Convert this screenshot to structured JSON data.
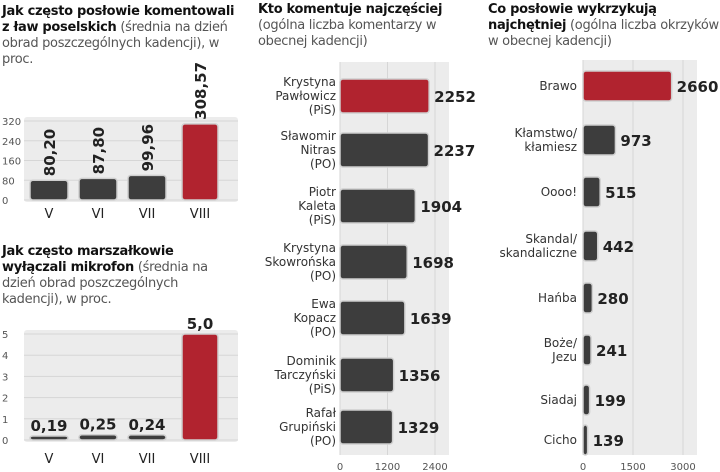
{
  "colors": {
    "dark": "#3d3d3d",
    "highlight": "#b1232f",
    "band": "#ececec"
  },
  "chart_data": [
    {
      "type": "bar",
      "title_bold": "Jak często posłowie komentowali z ław poselskich",
      "title_rest": "(średnia na dzień obrad poszczególnych kadencji), w proc.",
      "categories": [
        "V",
        "VI",
        "VII",
        "VIII"
      ],
      "values": [
        80.2,
        87.8,
        99.96,
        308.57
      ],
      "labels": [
        "80,20",
        "87,80",
        "99,96",
        "308,57"
      ],
      "yticks": [
        "0",
        "80",
        "160",
        "240",
        "320"
      ],
      "ylim": [
        0,
        320
      ],
      "highlight": [
        3
      ]
    },
    {
      "type": "bar",
      "title_bold": "Jak często marszałkowie wyłączali mikrofon",
      "title_rest": "(średnia na dzień obrad poszczególnych kadencji), w proc.",
      "categories": [
        "V",
        "VI",
        "VII",
        "VIII"
      ],
      "values": [
        0.19,
        0.25,
        0.24,
        5.0
      ],
      "labels": [
        "0,19",
        "0,25",
        "0,24",
        "5,0"
      ],
      "yticks": [
        "0",
        "1",
        "2",
        "3",
        "4",
        "5"
      ],
      "ylim": [
        0,
        5
      ],
      "highlight": [
        3
      ]
    },
    {
      "type": "bar",
      "orientation": "horizontal",
      "title_bold": "Kto komentuje najczęściej",
      "title_rest": "(ogólna liczba komentarzy w obecnej kadencji)",
      "categories": [
        [
          "Krystyna",
          "Pawłowicz",
          "(PiS)"
        ],
        [
          "Sławomir",
          "Nitras",
          "(PO)"
        ],
        [
          "Piotr",
          "Kaleta",
          "(PiS)"
        ],
        [
          "Krystyna",
          "Skowrońska",
          "(PO)"
        ],
        [
          "Ewa",
          "Kopacz",
          "(PO)"
        ],
        [
          "Dominik",
          "Tarczyński",
          "(PiS)"
        ],
        [
          "Rafał",
          "Grupiński",
          "(PO)"
        ]
      ],
      "values": [
        2252,
        2237,
        1904,
        1698,
        1639,
        1356,
        1329
      ],
      "xticks": [
        "0",
        "1200",
        "2400"
      ],
      "xlim": [
        0,
        2400
      ],
      "highlight": [
        0
      ]
    },
    {
      "type": "bar",
      "orientation": "horizontal",
      "title_bold": "Co posłowie wykrzykują najchętniej",
      "title_rest": "(ogólna liczba okrzyków w obecnej kadencji)",
      "categories": [
        [
          "Brawo"
        ],
        [
          "Kłamstwo/",
          "kłamiesz"
        ],
        [
          "Oooo!"
        ],
        [
          "Skandal/",
          "skandaliczne"
        ],
        [
          "Hańba"
        ],
        [
          "Boże/",
          "Jezu"
        ],
        [
          "Siadaj"
        ],
        [
          "Cicho"
        ]
      ],
      "values": [
        2660,
        973,
        515,
        442,
        280,
        241,
        199,
        139
      ],
      "xticks": [
        "0",
        "1500",
        "3000"
      ],
      "xlim": [
        0,
        3000
      ],
      "highlight": [
        0
      ]
    }
  ]
}
